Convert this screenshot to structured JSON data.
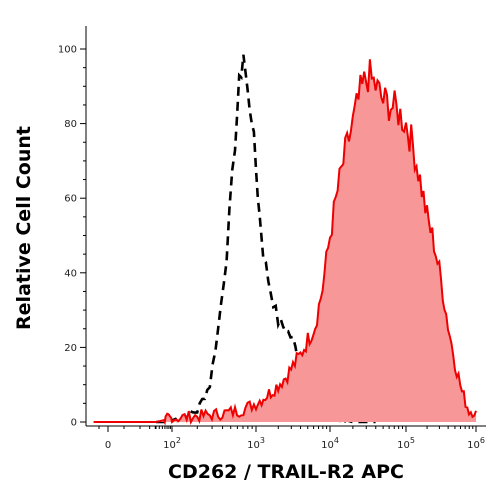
{
  "chart_data": {
    "type": "area",
    "title": "",
    "xlabel": "CD262 / TRAIL-R2 APC",
    "ylabel": "Relative Cell Count",
    "x_scale": "biexponential",
    "xlim": [
      -1,
      6
    ],
    "ylim": [
      0,
      100
    ],
    "grid": false,
    "legend": "none",
    "x_ticks": [
      {
        "value": 0,
        "label": "0"
      },
      {
        "value": 2,
        "base": "10",
        "exp": "2"
      },
      {
        "value": 3,
        "base": "10",
        "exp": "3"
      },
      {
        "value": 4,
        "base": "10",
        "exp": "4"
      },
      {
        "value": 5,
        "base": "10",
        "exp": "5"
      },
      {
        "value": 6,
        "base": "10",
        "exp": "6"
      }
    ],
    "y_ticks": [
      0,
      20,
      40,
      60,
      80,
      100
    ],
    "series": [
      {
        "style": "dashed line",
        "color": "#000000",
        "x": [
          1.5,
          1.9,
          2.1,
          2.3,
          2.45,
          2.55,
          2.65,
          2.75,
          2.8,
          2.85,
          2.9,
          2.95,
          3.0,
          3.05,
          3.1,
          3.2,
          3.3,
          3.4,
          3.5,
          3.6,
          3.7,
          3.8,
          3.9,
          4.0,
          4.1,
          4.3,
          4.6
        ],
        "values": [
          0,
          0,
          1,
          3,
          10,
          25,
          45,
          75,
          90,
          99,
          88,
          82,
          68,
          55,
          45,
          35,
          27,
          25,
          22,
          15,
          12,
          8,
          5,
          2,
          1,
          0,
          0
        ]
      },
      {
        "style": "filled area",
        "color": "#ee0000",
        "fill": "#f79797",
        "x": [
          -0.8,
          1.5,
          2.0,
          2.5,
          2.8,
          3.0,
          3.2,
          3.4,
          3.6,
          3.8,
          3.9,
          4.0,
          4.1,
          4.2,
          4.3,
          4.4,
          4.5,
          4.6,
          4.7,
          4.8,
          4.9,
          5.0,
          5.1,
          5.2,
          5.3,
          5.4,
          5.5,
          5.6,
          5.7,
          5.8,
          5.9,
          6.0
        ],
        "values": [
          0,
          0,
          1,
          2,
          3,
          5,
          8,
          12,
          18,
          26,
          36,
          50,
          62,
          72,
          80,
          88,
          93,
          90,
          86,
          85,
          83,
          80,
          74,
          65,
          55,
          48,
          38,
          26,
          16,
          8,
          3,
          3
        ]
      }
    ]
  }
}
